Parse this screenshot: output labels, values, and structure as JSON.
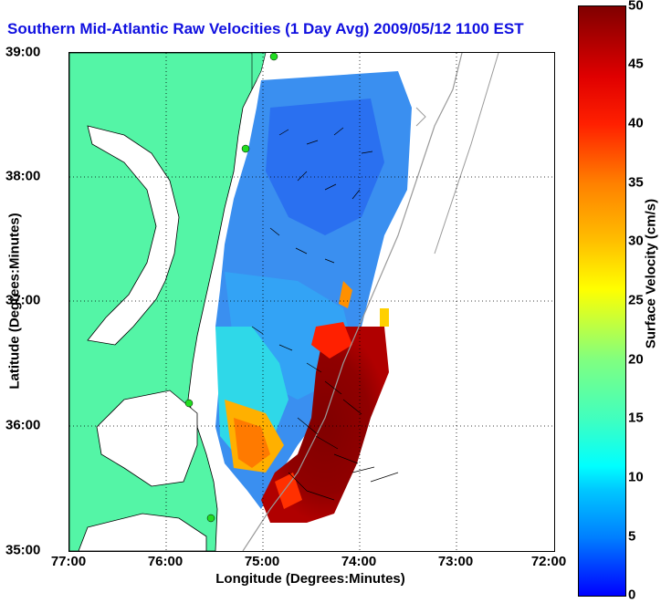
{
  "title": "Southern Mid-Atlantic Raw Velocities (1 Day Avg) 2009/05/12 1100 EST",
  "x_axis": {
    "label": "Longitude (Degrees:Minutes)",
    "ticks": [
      "77:00",
      "76:00",
      "75:00",
      "74:00",
      "73:00",
      "72:00"
    ]
  },
  "y_axis": {
    "label": "Latitude (Degrees:Minutes)",
    "ticks": [
      "39:00",
      "38:00",
      "37:00",
      "36:00",
      "35:00"
    ]
  },
  "colorbar": {
    "label": "Surface Velocity (cm/s)",
    "ticks": [
      "50",
      "45",
      "40",
      "35",
      "30",
      "25",
      "20",
      "15",
      "10",
      "5",
      "0"
    ],
    "range": [
      0,
      50
    ]
  },
  "colors": {
    "land": "#54f5a6",
    "title": "#1010e0",
    "coast": "#000000",
    "bathymetry": "#9a9a9a",
    "station": "#22dd22"
  },
  "map_extent": {
    "lon": [
      -77,
      -72
    ],
    "lat": [
      35,
      39
    ]
  }
}
